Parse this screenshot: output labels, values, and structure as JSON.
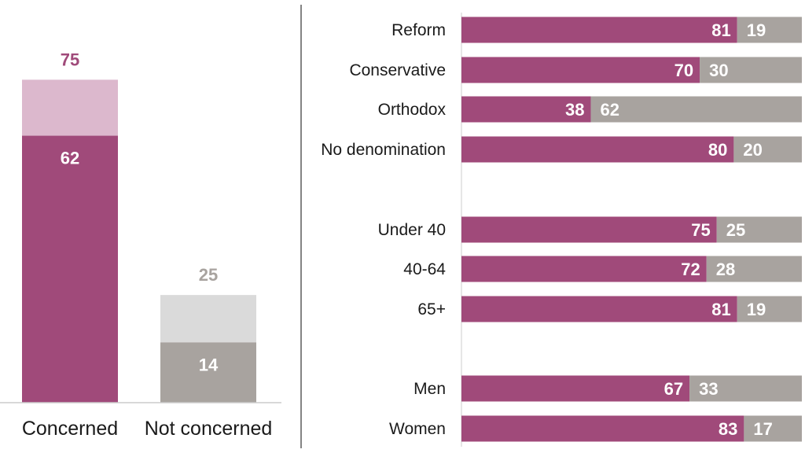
{
  "colors": {
    "concerned": "#a04a7a",
    "concerned_light": "#dcb8cd",
    "not_concerned": "#a8a39f",
    "not_concerned_light": "#dadada",
    "concerned_total_text": "#a04a7a",
    "not_concerned_total_text": "#a8a39f",
    "label_on_bar": "#ffffff",
    "axis": "#cccccc",
    "divider": "#333333"
  },
  "chart_data": [
    {
      "type": "bar",
      "categories": [
        "Concerned",
        "Not concerned"
      ],
      "series": [
        {
          "values": [
            62,
            14
          ]
        },
        {
          "values": [
            13,
            11
          ]
        }
      ],
      "totals": [
        75,
        25
      ],
      "ylim": [
        0,
        80
      ]
    },
    {
      "type": "bar",
      "orientation": "horizontal",
      "stacked": true,
      "groups": [
        {
          "categories": [
            "Reform",
            "Conservative",
            "Orthodox",
            "No denomination"
          ]
        },
        {
          "categories": [
            "Under 40",
            "40-64",
            "65+"
          ]
        },
        {
          "categories": [
            "Men",
            "Women"
          ]
        }
      ],
      "categories": [
        "Reform",
        "Conservative",
        "Orthodox",
        "No denomination",
        "Under 40",
        "40-64",
        "65+",
        "Men",
        "Women"
      ],
      "series": [
        {
          "values": [
            81,
            70,
            38,
            80,
            75,
            72,
            81,
            67,
            83
          ]
        },
        {
          "values": [
            19,
            30,
            62,
            20,
            25,
            28,
            19,
            33,
            17
          ]
        }
      ],
      "xlim": [
        0,
        100
      ]
    }
  ]
}
